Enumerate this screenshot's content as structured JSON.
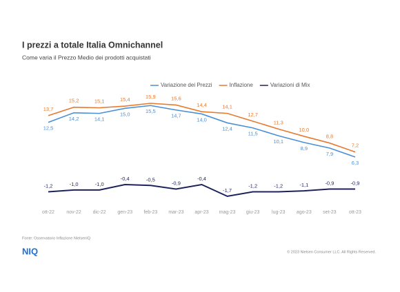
{
  "chart_data": {
    "type": "line",
    "title": "I prezzi a totale Italia Omnichannel",
    "subtitle": "Come varia il Prezzo Medio dei prodotti acquistati",
    "categories": [
      "ott-22",
      "nov-22",
      "dic-22",
      "gen-23",
      "feb-23",
      "mar-23",
      "apr-23",
      "mag-23",
      "giu-23",
      "lug-23",
      "ago-23",
      "set-23",
      "ott-23"
    ],
    "series": [
      {
        "name": "Variazione dei Prezzi",
        "color": "#4a8fd6",
        "values": [
          12.5,
          14.2,
          14.1,
          15.0,
          15.5,
          14.7,
          14.0,
          12.4,
          11.5,
          10.1,
          8.9,
          7.9,
          6.3
        ],
        "value_labels": [
          "12,5",
          "14,2",
          "14,1",
          "15,0",
          "15,5",
          "14,7",
          "14,0",
          "12,4",
          "11,5",
          "10,1",
          "8,9",
          "7,9",
          "6,3"
        ]
      },
      {
        "name": "Inflazione",
        "color": "#e8792d",
        "values": [
          13.7,
          15.2,
          15.1,
          15.4,
          15.9,
          15.6,
          14.4,
          14.1,
          12.7,
          11.3,
          10.0,
          8.8,
          7.2
        ],
        "value_labels": [
          "13,7",
          "15,2",
          "15,1",
          "15,4",
          "15,9",
          "15,6",
          "14,4",
          "14,1",
          "12,7",
          "11,3",
          "10,0",
          "8,8",
          "7,2"
        ]
      },
      {
        "name": "Variazioni di Mix",
        "color": "#1c2259",
        "values": [
          -1.2,
          -1.0,
          -1.0,
          -0.4,
          -0.5,
          -0.9,
          -0.4,
          -1.7,
          -1.2,
          -1.2,
          -1.1,
          -0.9,
          -0.9
        ],
        "value_labels": [
          "-1,2",
          "-1,0",
          "-1,0",
          "-0,4",
          "-0,5",
          "-0,9",
          "-0,4",
          "-1,7",
          "-1,2",
          "-1,2",
          "-1,1",
          "-0,9",
          "-0,9"
        ]
      }
    ],
    "source": "Fonte: Osservatorio Inflazione NielsenIQ",
    "logo": "NIQ",
    "copyright": "© 2023 Nielsen Consumer LLC. All Rights Reserved."
  }
}
